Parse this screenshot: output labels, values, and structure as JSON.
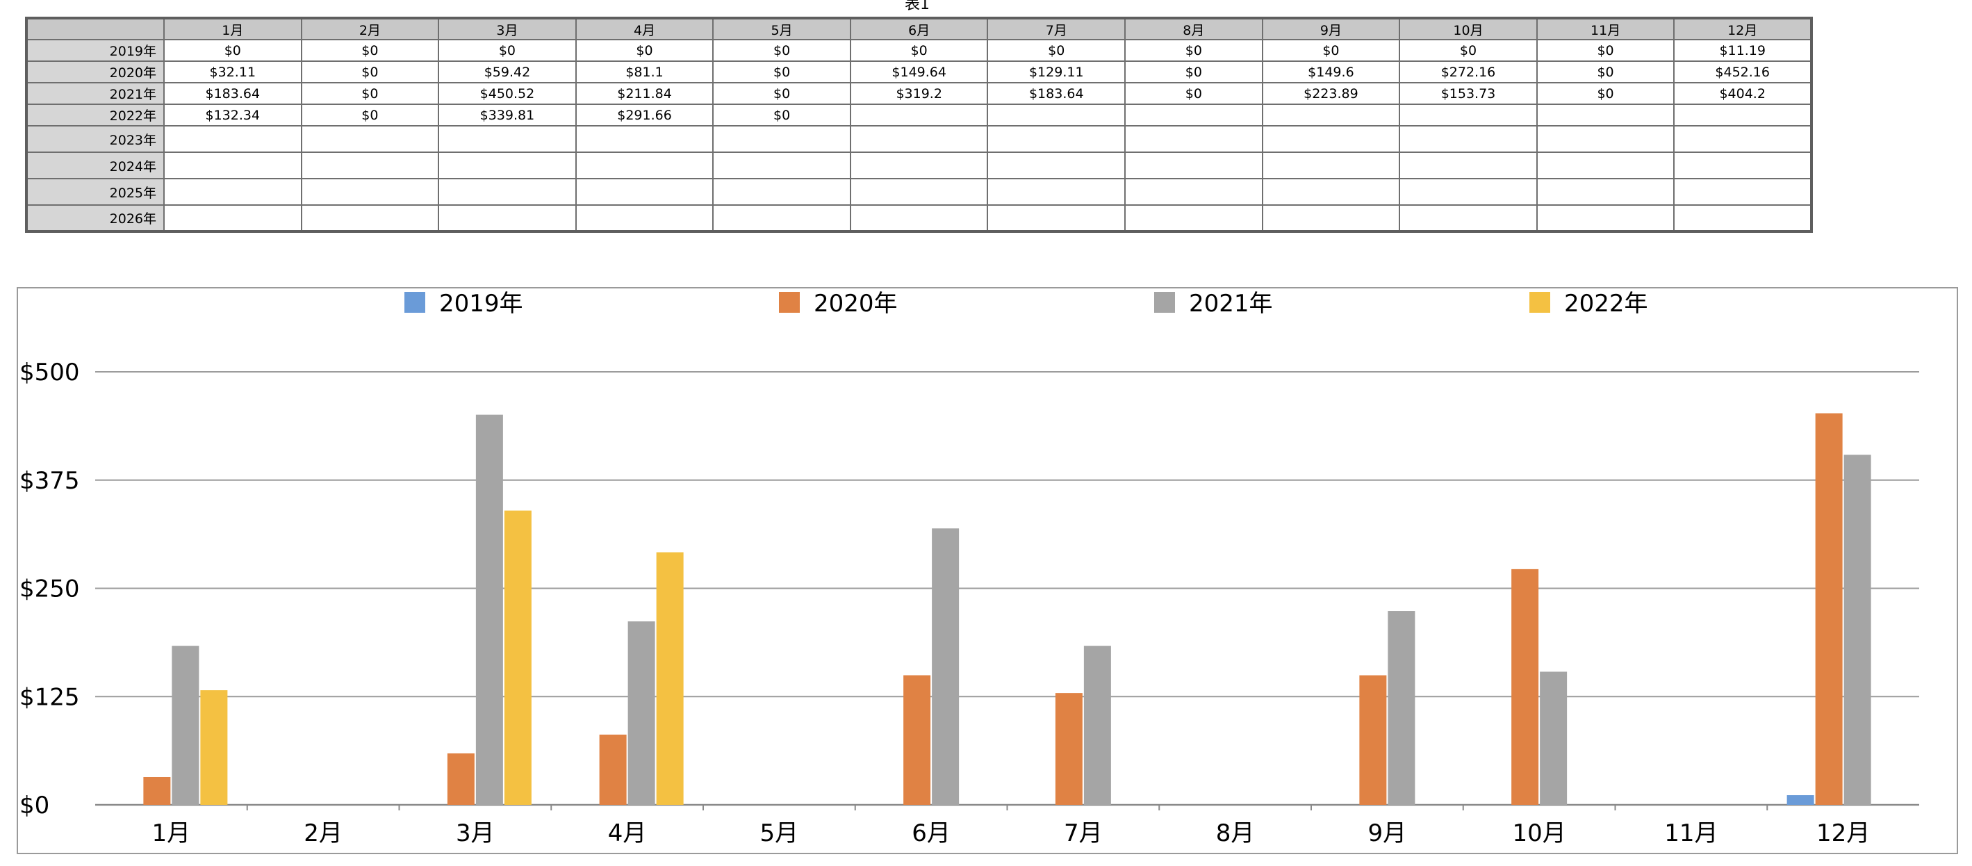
{
  "table": {
    "title": "表1",
    "months": [
      "1月",
      "2月",
      "3月",
      "4月",
      "5月",
      "6月",
      "7月",
      "8月",
      "9月",
      "10月",
      "11月",
      "12月"
    ],
    "rows": [
      {
        "year": "2019年",
        "cells": [
          "$0",
          "$0",
          "$0",
          "$0",
          "$0",
          "$0",
          "$0",
          "$0",
          "$0",
          "$0",
          "$0",
          "$11.19"
        ]
      },
      {
        "year": "2020年",
        "cells": [
          "$32.11",
          "$0",
          "$59.42",
          "$81.1",
          "$0",
          "$149.64",
          "$129.11",
          "$0",
          "$149.6",
          "$272.16",
          "$0",
          "$452.16"
        ]
      },
      {
        "year": "2021年",
        "cells": [
          "$183.64",
          "$0",
          "$450.52",
          "$211.84",
          "$0",
          "$319.2",
          "$183.64",
          "$0",
          "$223.89",
          "$153.73",
          "$0",
          "$404.2"
        ]
      },
      {
        "year": "2022年",
        "cells": [
          "$132.34",
          "$0",
          "$339.81",
          "$291.66",
          "$0",
          "",
          "",
          "",
          "",
          "",
          "",
          ""
        ]
      },
      {
        "year": "2023年",
        "cells": [
          "",
          "",
          "",
          "",
          "",
          "",
          "",
          "",
          "",
          "",
          "",
          ""
        ]
      },
      {
        "year": "2024年",
        "cells": [
          "",
          "",
          "",
          "",
          "",
          "",
          "",
          "",
          "",
          "",
          "",
          ""
        ]
      },
      {
        "year": "2025年",
        "cells": [
          "",
          "",
          "",
          "",
          "",
          "",
          "",
          "",
          "",
          "",
          "",
          ""
        ]
      },
      {
        "year": "2026年",
        "cells": [
          "",
          "",
          "",
          "",
          "",
          "",
          "",
          "",
          "",
          "",
          "",
          ""
        ]
      }
    ]
  },
  "chart_data": {
    "type": "bar",
    "categories": [
      "1月",
      "2月",
      "3月",
      "4月",
      "5月",
      "6月",
      "7月",
      "8月",
      "9月",
      "10月",
      "11月",
      "12月"
    ],
    "series": [
      {
        "name": "2019年",
        "color": "#6a9bd8",
        "values": [
          0,
          0,
          0,
          0,
          0,
          0,
          0,
          0,
          0,
          0,
          0,
          11.19
        ]
      },
      {
        "name": "2020年",
        "color": "#e08244",
        "values": [
          32.11,
          0,
          59.42,
          81.1,
          0,
          149.64,
          129.11,
          0,
          149.6,
          272.16,
          0,
          452.16
        ]
      },
      {
        "name": "2021年",
        "color": "#a5a5a5",
        "values": [
          183.64,
          0,
          450.52,
          211.84,
          0,
          319.2,
          183.64,
          0,
          223.89,
          153.73,
          0,
          404.2
        ]
      },
      {
        "name": "2022年",
        "color": "#f4c142",
        "values": [
          132.34,
          0,
          339.81,
          291.66,
          0,
          null,
          null,
          null,
          null,
          null,
          null,
          null
        ]
      }
    ],
    "ylim": [
      0,
      500
    ],
    "yticks": [
      0,
      125,
      250,
      375,
      500
    ],
    "ytick_labels": [
      "$0",
      "$125",
      "$250",
      "$375",
      "$500"
    ],
    "grid": true,
    "legend_position": "top"
  }
}
